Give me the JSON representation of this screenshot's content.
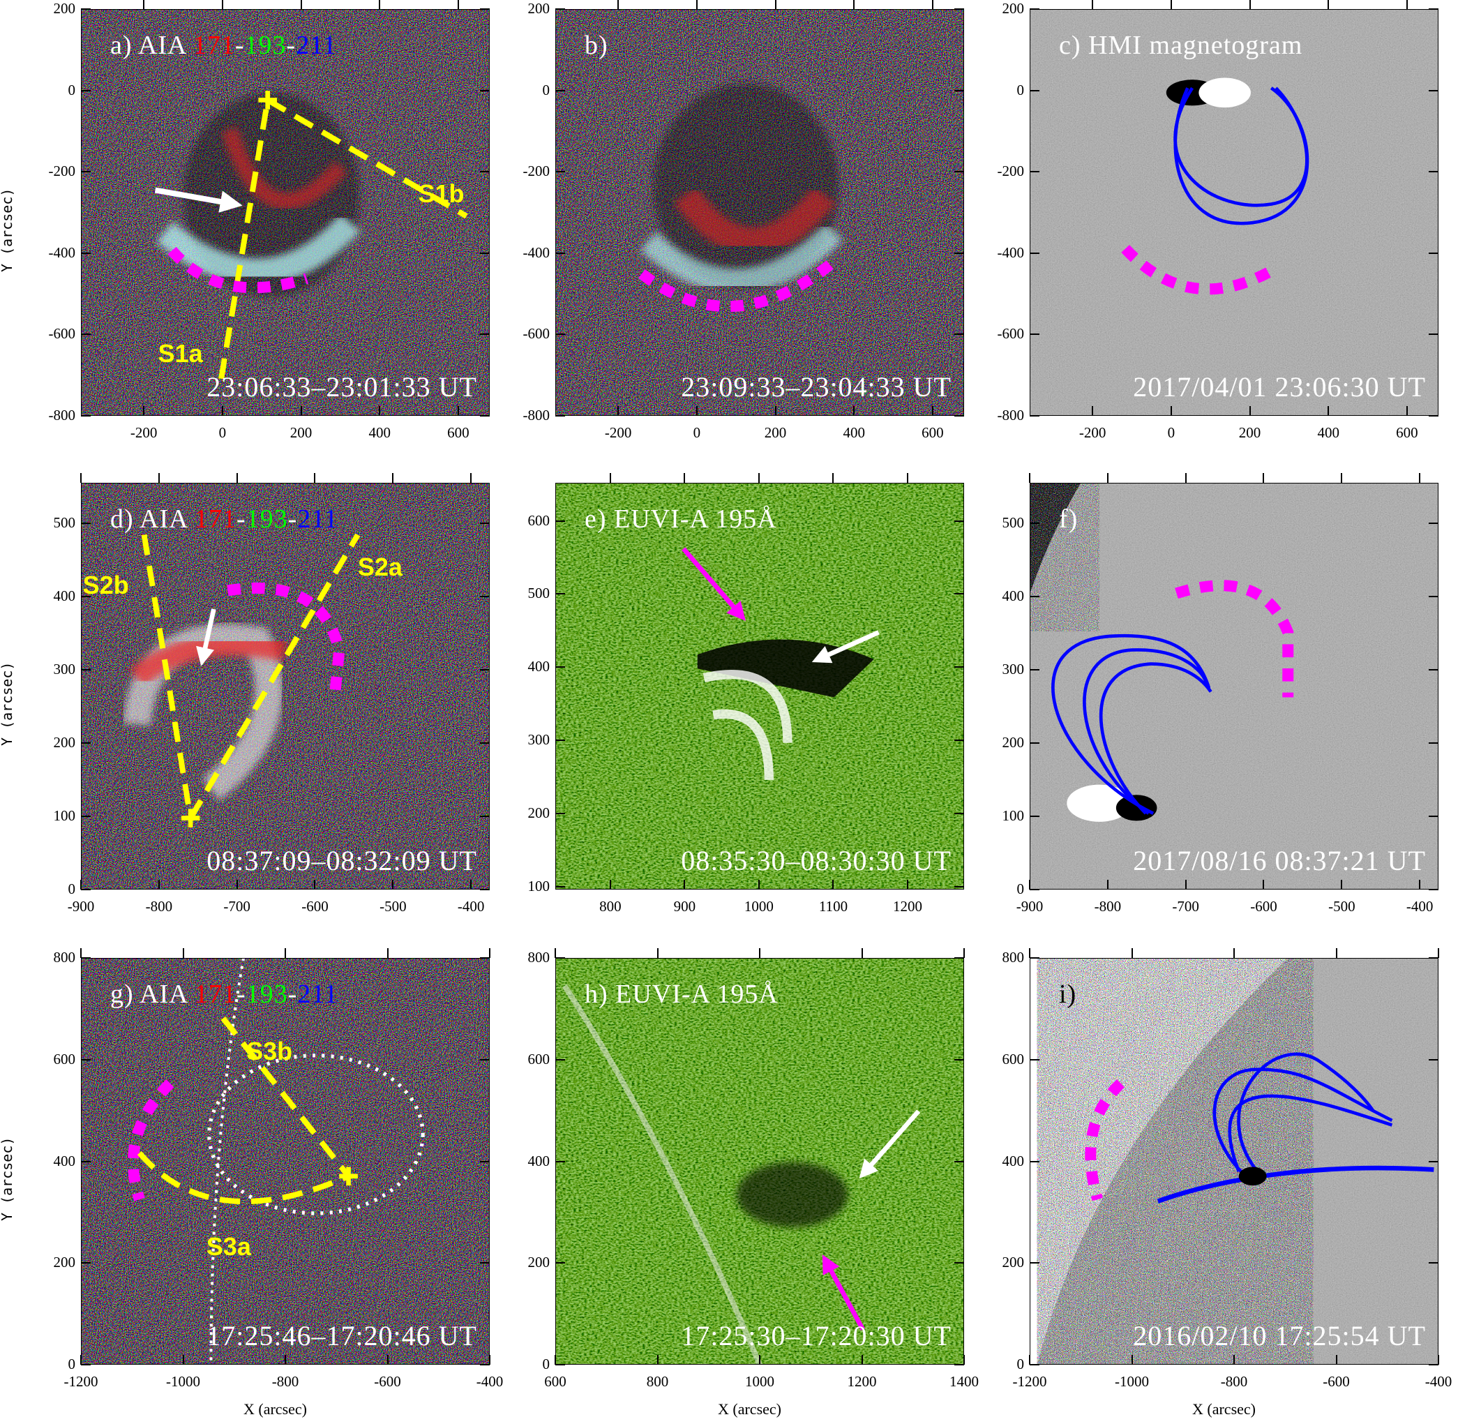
{
  "figure": {
    "y_axis_label": "Y (arcsec)",
    "x_axis_label": "X (arcsec)",
    "colors": {
      "slit": "#ffff00",
      "front_arc": "#ff00ff",
      "field_lines": "#0000ff",
      "c171": "#ff0000",
      "c193": "#00ff00",
      "c211": "#0000ff"
    },
    "panels": [
      {
        "id": "a",
        "title": "a) AIA ",
        "bands": [
          "171",
          "193",
          "211"
        ],
        "timestamp": "23:06:33–23:01:33 UT",
        "background": "aia-rgb-difference",
        "xlim": [
          -360,
          680
        ],
        "ylim": [
          -800,
          200
        ],
        "xticks": [
          "-200",
          "0",
          "200",
          "400",
          "600"
        ],
        "yticks": [
          "200",
          "0",
          "-200",
          "-400",
          "-600",
          "-800"
        ],
        "slits": [
          "S1a",
          "S1b"
        ]
      },
      {
        "id": "b",
        "title": "b)",
        "timestamp": "23:09:33–23:04:33 UT",
        "background": "aia-rgb-difference",
        "xlim": [
          -360,
          680
        ],
        "ylim": [
          -800,
          200
        ],
        "xticks": [
          "-200",
          "0",
          "200",
          "400",
          "600"
        ],
        "yticks": [
          "200",
          "0",
          "-200",
          "-400",
          "-600",
          "-800"
        ]
      },
      {
        "id": "c",
        "title": "c) HMI magnetogram",
        "timestamp": "2017/04/01   23:06:30 UT",
        "background": "hmi-magnetogram",
        "xlim": [
          -360,
          680
        ],
        "ylim": [
          -800,
          200
        ],
        "xticks": [
          "-200",
          "0",
          "200",
          "400",
          "600"
        ],
        "yticks": [
          "200",
          "0",
          "-200",
          "-400",
          "-600",
          "-800"
        ]
      },
      {
        "id": "d",
        "title": "d) AIA ",
        "bands": [
          "171",
          "193",
          "211"
        ],
        "timestamp": "08:37:09–08:32:09 UT",
        "background": "aia-rgb-difference",
        "xlim": [
          -900,
          -376
        ],
        "ylim": [
          0,
          555
        ],
        "xticks": [
          "-900",
          "-800",
          "-700",
          "-600",
          "-500",
          "-400"
        ],
        "yticks": [
          "500",
          "400",
          "300",
          "200",
          "100",
          "0"
        ],
        "slits": [
          "S2b",
          "S2a"
        ]
      },
      {
        "id": "e",
        "title": "e) EUVI-A 195Å",
        "timestamp": "08:35:30–08:30:30 UT",
        "background": "euvi-difference",
        "xlim": [
          726,
          1276
        ],
        "ylim": [
          96,
          652
        ],
        "xticks": [
          "800",
          "900",
          "1000",
          "1100",
          "1200"
        ],
        "yticks": [
          "600",
          "500",
          "400",
          "300",
          "200",
          "100"
        ]
      },
      {
        "id": "f",
        "title": "f)",
        "timestamp": "2017/08/16   08:37:21 UT",
        "background": "hmi-magnetogram",
        "xlim": [
          -900,
          -376
        ],
        "ylim": [
          0,
          555
        ],
        "xticks": [
          "-900",
          "-800",
          "-700",
          "-600",
          "-500",
          "-400"
        ],
        "yticks": [
          "500",
          "400",
          "300",
          "200",
          "100",
          "0"
        ]
      },
      {
        "id": "g",
        "title": "g) AIA ",
        "bands": [
          "171",
          "193",
          "211"
        ],
        "timestamp": "17:25:46–17:20:46 UT",
        "background": "aia-rgb-difference",
        "xlim": [
          -1200,
          -400
        ],
        "ylim": [
          0,
          800
        ],
        "xticks": [
          "-1200",
          "-1000",
          "-800",
          "-600",
          "-400"
        ],
        "yticks": [
          "800",
          "600",
          "400",
          "200",
          "0"
        ],
        "slits": [
          "S3b",
          "S3a"
        ]
      },
      {
        "id": "h",
        "title": "h) EUVI-A 195Å",
        "timestamp": "17:25:30–17:20:30 UT",
        "background": "euvi-difference",
        "xlim": [
          600,
          1400
        ],
        "ylim": [
          0,
          800
        ],
        "xticks": [
          "600",
          "800",
          "1000",
          "1200",
          "1400"
        ],
        "yticks": [
          "800",
          "600",
          "400",
          "200",
          "0"
        ]
      },
      {
        "id": "i",
        "title": "i)",
        "timestamp": "2016/02/10   17:25:54 UT",
        "background": "hmi-magnetogram",
        "xlim": [
          -1200,
          -400
        ],
        "ylim": [
          0,
          800
        ],
        "xticks": [
          "-1200",
          "-1000",
          "-800",
          "-600",
          "-400"
        ],
        "yticks": [
          "800",
          "600",
          "400",
          "200",
          "0"
        ]
      }
    ]
  }
}
